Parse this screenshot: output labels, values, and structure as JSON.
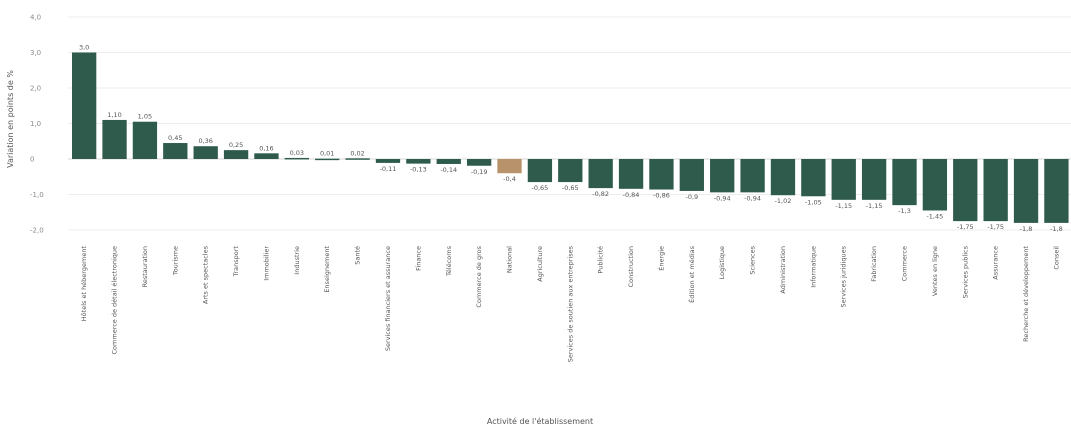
{
  "chart_data": {
    "type": "bar",
    "title": "",
    "xlabel": "Activité de l'établissement",
    "ylabel": "Variation en points de %",
    "ylim": [
      -4.2,
      4.0
    ],
    "yticks": [
      -2.0,
      -1.0,
      0,
      1.0,
      2.0,
      3.0,
      4.0
    ],
    "ytick_labels": [
      "-2,0",
      "-1,0",
      "0",
      "1,0",
      "2,0",
      "3,0",
      "4,0"
    ],
    "grid": true,
    "legend": "none",
    "colors": {
      "default": "#2e5b4b",
      "highlight": "#b8926a"
    },
    "categories": [
      "Hôtels et hébergement",
      "Commerce de détail électronique",
      "Restauration",
      "Tourisme",
      "Arts et spectacles",
      "Transport",
      "Immobilier",
      "Industrie",
      "Enseignement",
      "Santé",
      "Services financiers et assurance",
      "Finance",
      "Télécoms",
      "Commerce de gros",
      "National",
      "Agriculture",
      "Services de soutien aux entreprises",
      "Publicité",
      "Construction",
      "Énergie",
      "Édition et médias",
      "Logistique",
      "Sciences",
      "Administration",
      "Informatique",
      "Services juridiques",
      "Fabrication",
      "Commerce",
      "Ventes en ligne",
      "Services publics",
      "Assurance",
      "Recherche et développement",
      "Conseil"
    ],
    "values": [
      3.0,
      1.1,
      1.05,
      0.45,
      0.36,
      0.25,
      0.16,
      0.03,
      0.01,
      0.02,
      -0.11,
      -0.13,
      -0.14,
      -0.19,
      -0.4,
      -0.65,
      -0.65,
      -0.82,
      -0.84,
      -0.86,
      -0.9,
      -0.94,
      -0.94,
      -1.02,
      -1.05,
      -1.15,
      -1.15,
      -1.3,
      -1.45,
      -1.75,
      -1.75,
      -1.8,
      -1.8
    ],
    "data_labels": [
      "3,0",
      "1,10",
      "1,05",
      "0,45",
      "0,36",
      "0,25",
      "0,16",
      "0,03",
      "0,01",
      "0,02",
      "-0,11",
      "-0,13",
      "-0,14",
      "-0,19",
      "-0,4",
      "-0,65",
      "-0,65",
      "-0,82",
      "-0,84",
      "-0,86",
      "-0,9",
      "-0,94",
      "-0,94",
      "-1,02",
      "-1,05",
      "-1,15",
      "-1,15",
      "-1,3",
      "-1,45",
      "-1,75",
      "-1,75",
      "-1,8",
      "-1,8"
    ],
    "highlight_index": 14
  }
}
